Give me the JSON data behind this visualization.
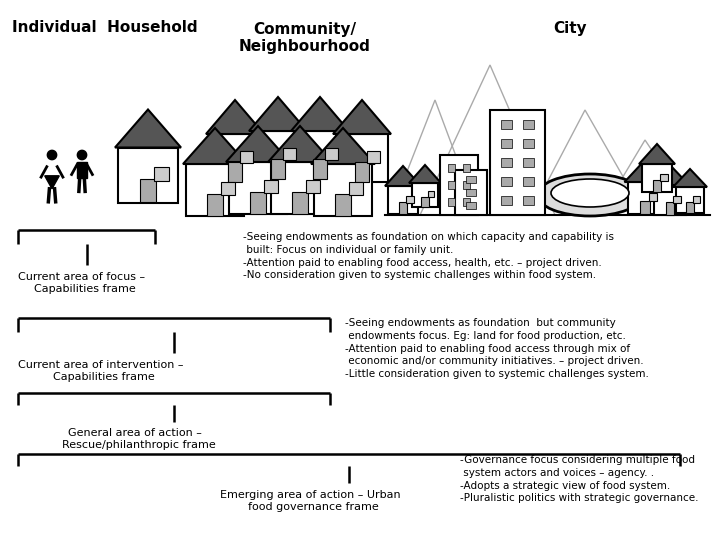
{
  "bg_color": "#ffffff",
  "title_individual": "Individual  Household",
  "title_community": "Community/\nNeighbourhood",
  "title_city": "City",
  "bracket1_label": "Current area of focus –\n  Capabilities frame",
  "bracket2_label": "Current area of intervention –\n  Capabilities frame",
  "bracket3_label": "General area of action –\n  Rescue/philanthropic frame",
  "bracket4_label": "Emerging area of action – Urban\n  food governance frame",
  "text1": "-Seeing endowments as foundation on which capacity and capability is\n built: Focus on individual or family unit.\n-Attention paid to enabling food access, health, etc. – project driven.\n-No consideration given to systemic challenges within food system.",
  "text2": "-Seeing endowments as foundation  but community\n endowments focus. Eg: land for food production, etc.\n-Attention paid to enabling food access through mix of\n economic and/or community initiatives. – project driven.\n-Little consideration given to systemic challenges system.",
  "text3": "-Governance focus considering multiple food\n system actors and voices – agency. .\n-Adopts a strategic view of food system.\n-Pluralistic politics with strategic governance."
}
